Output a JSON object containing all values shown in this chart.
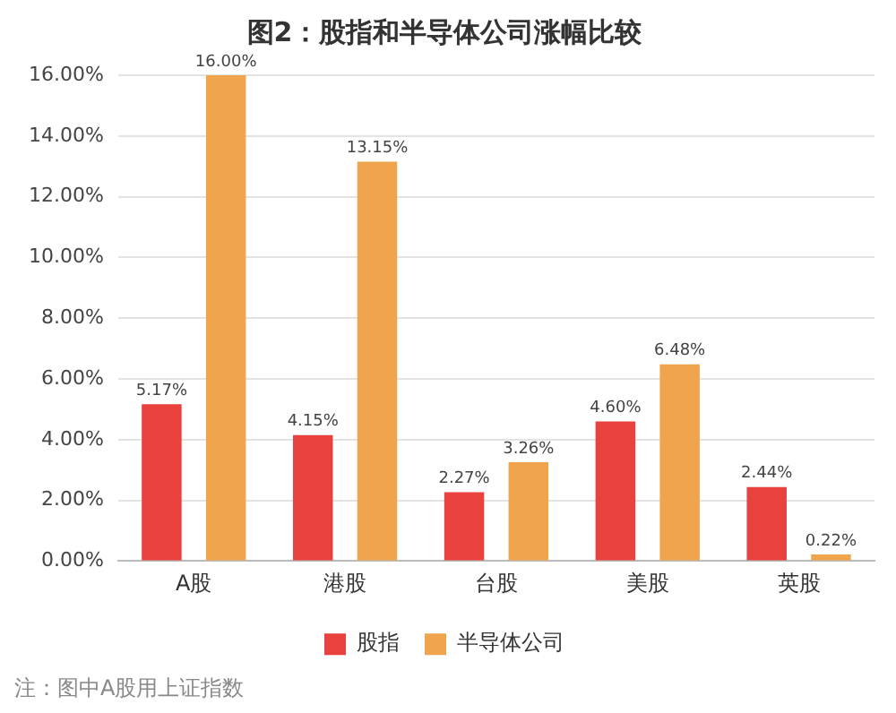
{
  "chart_data": {
    "type": "bar",
    "title": "图2：股指和半导体公司涨幅比较",
    "categories": [
      "A股",
      "港股",
      "台股",
      "美股",
      "英股"
    ],
    "series": [
      {
        "name": "股指",
        "color": "#e8413e",
        "values": [
          5.17,
          4.15,
          2.27,
          4.6,
          2.44
        ],
        "value_labels": [
          "5.17%",
          "4.15%",
          "2.27%",
          "4.60%",
          "2.44%"
        ]
      },
      {
        "name": "半导体公司",
        "color": "#f0a44b",
        "values": [
          16,
          13.15,
          3.26,
          6.48,
          0.22
        ],
        "value_labels": [
          "16.00%",
          "13.15%",
          "3.26%",
          "6.48%",
          "0.22%"
        ]
      }
    ],
    "ylim": [
      0,
      16
    ],
    "yticks": [
      {
        "value": 0,
        "label": "0.00%"
      },
      {
        "value": 2,
        "label": "2.00%"
      },
      {
        "value": 4,
        "label": "4.00%"
      },
      {
        "value": 6,
        "label": "6.00%"
      },
      {
        "value": 8,
        "label": "8.00%"
      },
      {
        "value": 10,
        "label": "10.00%"
      },
      {
        "value": 12,
        "label": "12.00%"
      },
      {
        "value": 14,
        "label": "14.00%"
      },
      {
        "value": 16,
        "label": "16.00%"
      }
    ],
    "grid": "y",
    "legend": "bottom",
    "annotations": [
      "注：图中A股用上证指数"
    ]
  }
}
